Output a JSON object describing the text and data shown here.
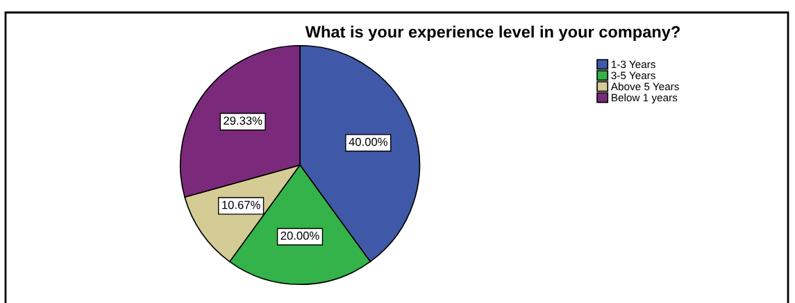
{
  "chart_data": {
    "type": "pie",
    "title": "What is your experience level in your company?",
    "categories": [
      "1-3 Years",
      "3-5 Years",
      "Above 5 Years",
      "Below 1 years"
    ],
    "values": [
      40.0,
      20.0,
      10.67,
      29.33
    ],
    "colors": [
      "#3f58a8",
      "#33b34a",
      "#d4cc94",
      "#7b2a7b"
    ],
    "value_labels": [
      "40.00%",
      "20.00%",
      "10.67%",
      "29.33%"
    ],
    "legend": "top right"
  }
}
